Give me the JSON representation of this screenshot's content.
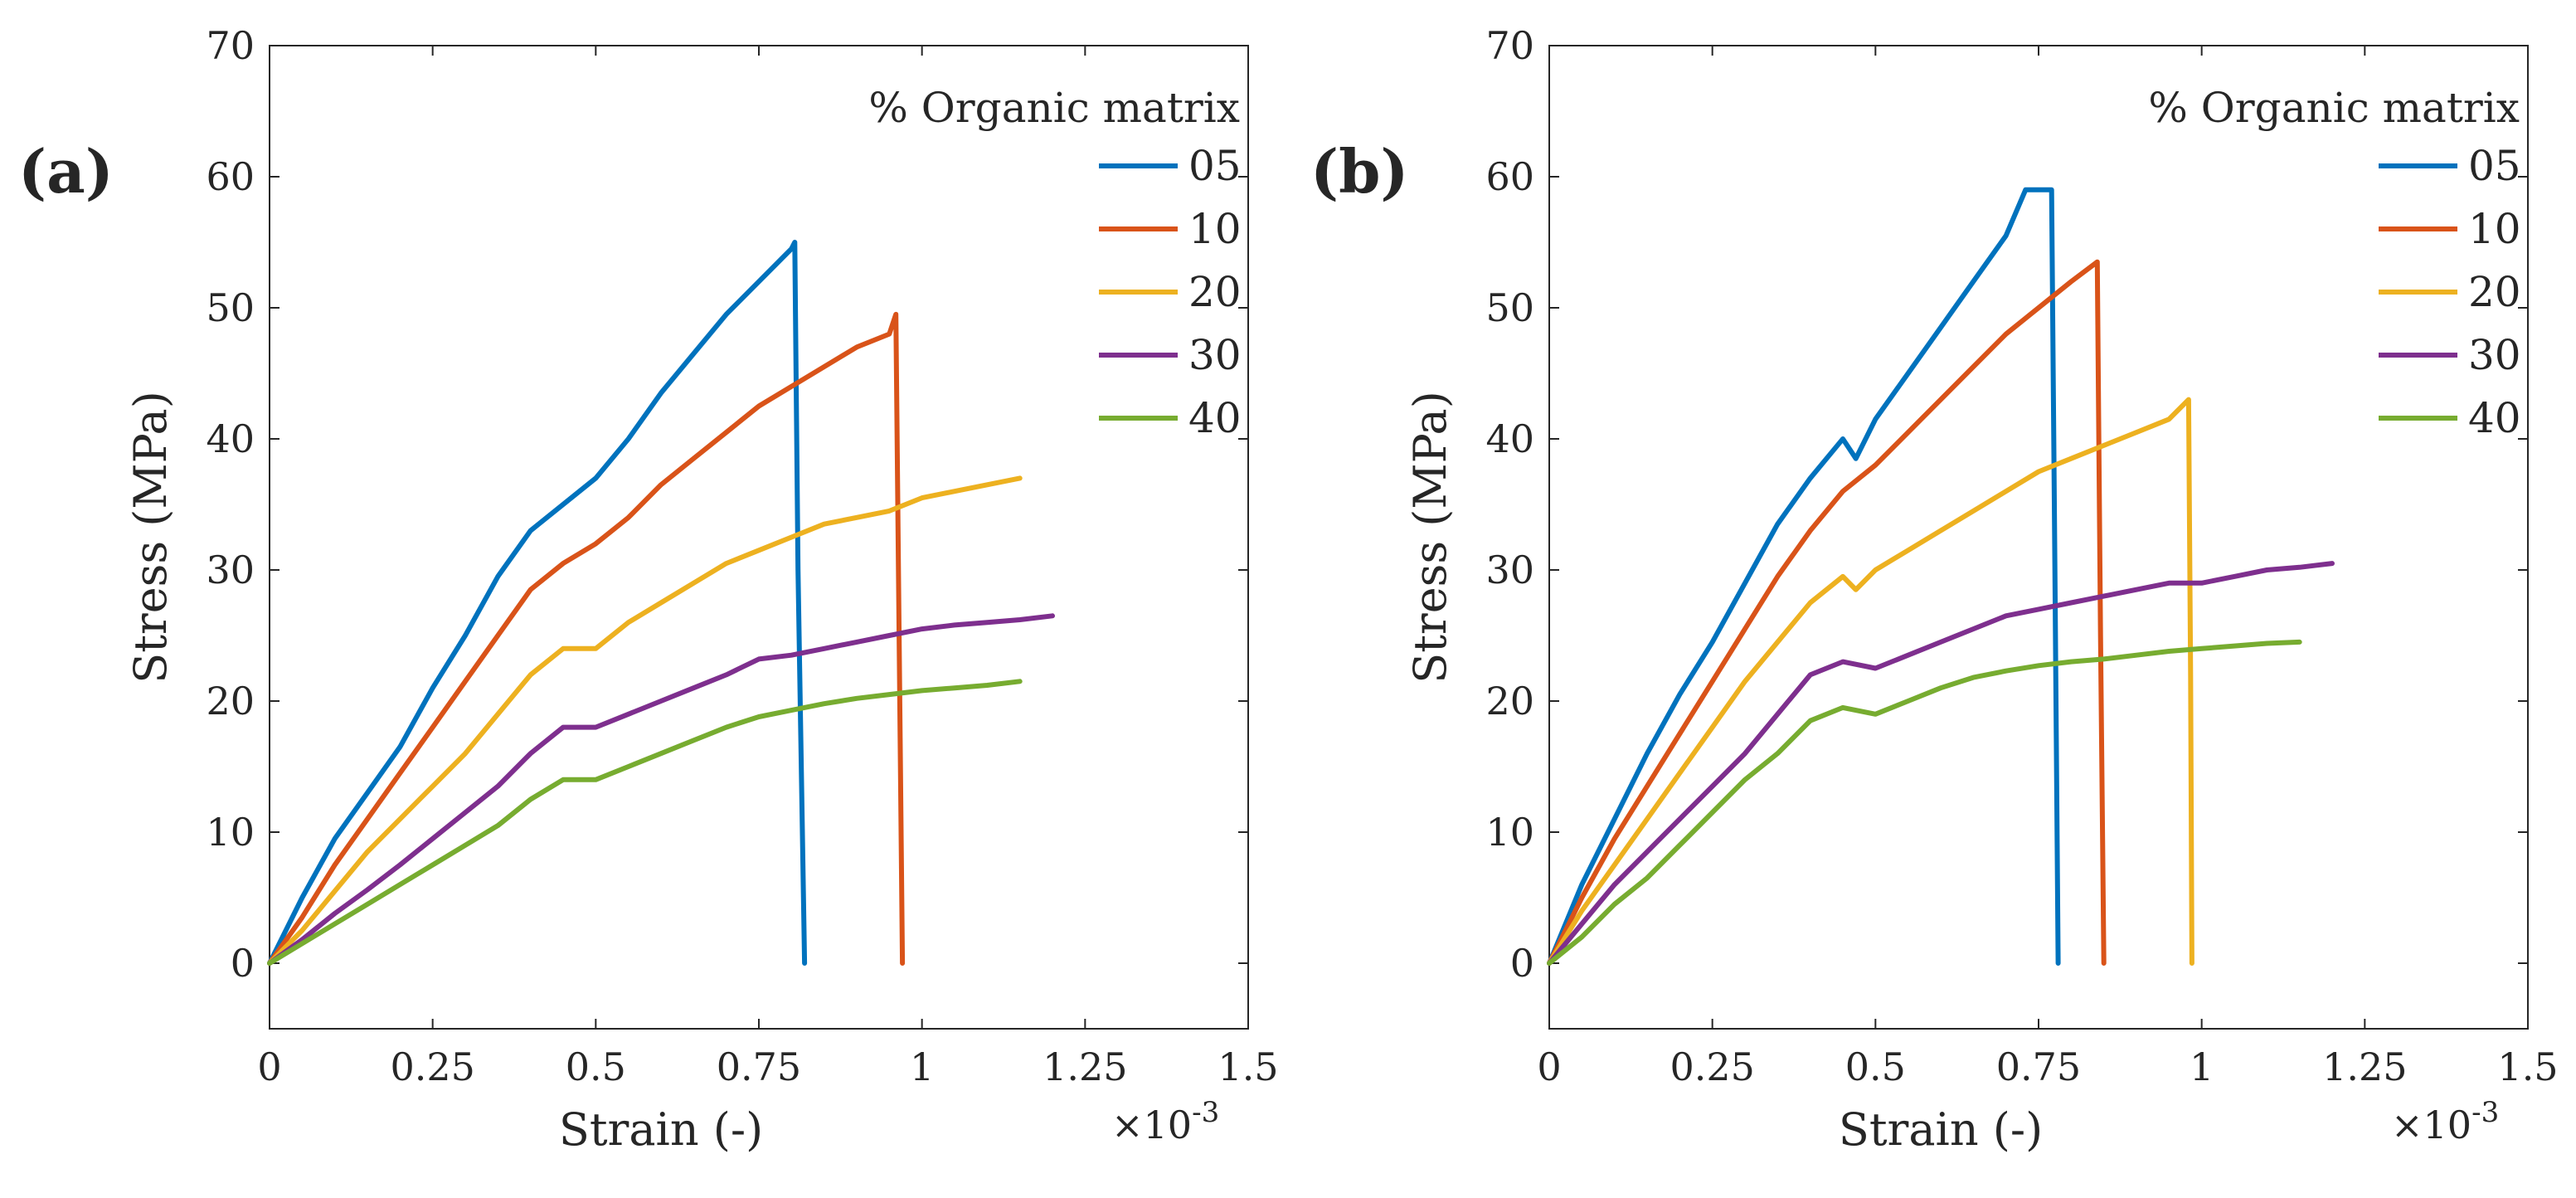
{
  "chart_data": [
    {
      "panel": "(a)",
      "type": "line",
      "xlabel": "Strain (-)",
      "ylabel": "Stress (MPa)",
      "x_multiplier": "×10",
      "x_exponent": "-3",
      "xlim": [
        0,
        1.5
      ],
      "ylim": [
        -5,
        70
      ],
      "xticks": [
        "0",
        "0.25",
        "0.5",
        "0.75",
        "1",
        "1.25",
        "1.5"
      ],
      "yticks": [
        "0",
        "10",
        "20",
        "30",
        "40",
        "50",
        "60",
        "70"
      ],
      "legend_title": "% Organic matrix",
      "legend_position": "top-right",
      "series": [
        {
          "name": "05",
          "color": "#0072BD",
          "x": [
            0,
            0.05,
            0.1,
            0.15,
            0.2,
            0.25,
            0.3,
            0.35,
            0.4,
            0.45,
            0.5,
            0.55,
            0.6,
            0.65,
            0.7,
            0.75,
            0.8,
            0.805,
            0.81,
            0.82
          ],
          "y": [
            0,
            5,
            9.5,
            13,
            16.5,
            21,
            25,
            29.5,
            33,
            35,
            37,
            40,
            43.5,
            46.5,
            49.5,
            52,
            54.5,
            55,
            30,
            0
          ]
        },
        {
          "name": "10",
          "color": "#D95319",
          "x": [
            0,
            0.05,
            0.1,
            0.15,
            0.2,
            0.25,
            0.3,
            0.35,
            0.4,
            0.45,
            0.5,
            0.55,
            0.6,
            0.65,
            0.7,
            0.75,
            0.8,
            0.85,
            0.9,
            0.95,
            0.96,
            0.965,
            0.97
          ],
          "y": [
            0,
            3.5,
            7.5,
            11,
            14.5,
            18,
            21.5,
            25,
            28.5,
            30.5,
            32,
            34,
            36.5,
            38.5,
            40.5,
            42.5,
            44,
            45.5,
            47,
            48,
            49.5,
            25,
            0
          ]
        },
        {
          "name": "20",
          "color": "#EDB120",
          "x": [
            0,
            0.05,
            0.1,
            0.15,
            0.2,
            0.25,
            0.3,
            0.35,
            0.4,
            0.45,
            0.5,
            0.55,
            0.6,
            0.65,
            0.7,
            0.75,
            0.8,
            0.85,
            0.9,
            0.95,
            1.0,
            1.05,
            1.1,
            1.15
          ],
          "y": [
            0,
            2.5,
            5.5,
            8.5,
            11,
            13.5,
            16,
            19,
            22,
            24,
            24,
            26,
            27.5,
            29,
            30.5,
            31.5,
            32.5,
            33.5,
            34,
            34.5,
            35.5,
            36,
            36.5,
            37
          ]
        },
        {
          "name": "30",
          "color": "#7E2F8E",
          "x": [
            0,
            0.05,
            0.1,
            0.15,
            0.2,
            0.25,
            0.3,
            0.35,
            0.4,
            0.45,
            0.5,
            0.55,
            0.6,
            0.65,
            0.7,
            0.75,
            0.8,
            0.85,
            0.9,
            0.95,
            1.0,
            1.05,
            1.1,
            1.15,
            1.2
          ],
          "y": [
            0,
            1.8,
            3.8,
            5.6,
            7.5,
            9.5,
            11.5,
            13.5,
            16,
            18,
            18,
            19,
            20,
            21,
            22,
            23.2,
            23.5,
            24,
            24.5,
            25,
            25.5,
            25.8,
            26,
            26.2,
            26.5
          ]
        },
        {
          "name": "40",
          "color": "#77AC30",
          "x": [
            0,
            0.05,
            0.1,
            0.15,
            0.2,
            0.25,
            0.3,
            0.35,
            0.4,
            0.45,
            0.5,
            0.55,
            0.6,
            0.65,
            0.7,
            0.75,
            0.8,
            0.85,
            0.9,
            0.95,
            1.0,
            1.05,
            1.1,
            1.15
          ],
          "y": [
            0,
            1.5,
            3,
            4.5,
            6,
            7.5,
            9,
            10.5,
            12.5,
            14,
            14,
            15,
            16,
            17,
            18,
            18.8,
            19.3,
            19.8,
            20.2,
            20.5,
            20.8,
            21,
            21.2,
            21.5
          ]
        }
      ]
    },
    {
      "panel": "(b)",
      "type": "line",
      "xlabel": "Strain (-)",
      "ylabel": "Stress (MPa)",
      "x_multiplier": "×10",
      "x_exponent": "-3",
      "xlim": [
        0,
        1.5
      ],
      "ylim": [
        -5,
        70
      ],
      "xticks": [
        "0",
        "0.25",
        "0.5",
        "0.75",
        "1",
        "1.25",
        "1.5"
      ],
      "yticks": [
        "0",
        "10",
        "20",
        "30",
        "40",
        "50",
        "60",
        "70"
      ],
      "legend_title": "% Organic matrix",
      "legend_position": "top-right",
      "series": [
        {
          "name": "05",
          "color": "#0072BD",
          "x": [
            0,
            0.05,
            0.1,
            0.15,
            0.2,
            0.25,
            0.3,
            0.35,
            0.4,
            0.45,
            0.47,
            0.5,
            0.55,
            0.6,
            0.65,
            0.7,
            0.73,
            0.77,
            0.775,
            0.78
          ],
          "y": [
            0,
            6,
            11,
            16,
            20.5,
            24.5,
            29,
            33.5,
            37,
            40,
            38.5,
            41.5,
            45,
            48.5,
            52,
            55.5,
            59,
            59,
            30,
            0
          ]
        },
        {
          "name": "10",
          "color": "#D95319",
          "x": [
            0,
            0.05,
            0.1,
            0.15,
            0.2,
            0.25,
            0.3,
            0.35,
            0.4,
            0.45,
            0.5,
            0.55,
            0.6,
            0.65,
            0.7,
            0.75,
            0.8,
            0.84,
            0.845,
            0.85
          ],
          "y": [
            0,
            5,
            9.5,
            13.5,
            17.5,
            21.5,
            25.5,
            29.5,
            33,
            36,
            38,
            40.5,
            43,
            45.5,
            48,
            50,
            52,
            53.5,
            25,
            0
          ]
        },
        {
          "name": "20",
          "color": "#EDB120",
          "x": [
            0,
            0.05,
            0.1,
            0.15,
            0.2,
            0.25,
            0.3,
            0.35,
            0.4,
            0.45,
            0.47,
            0.5,
            0.55,
            0.6,
            0.65,
            0.7,
            0.75,
            0.8,
            0.85,
            0.9,
            0.95,
            0.98,
            0.983,
            0.985
          ],
          "y": [
            0,
            4,
            7.5,
            11,
            14.5,
            18,
            21.5,
            24.5,
            27.5,
            29.5,
            28.5,
            30,
            31.5,
            33,
            34.5,
            36,
            37.5,
            38.5,
            39.5,
            40.5,
            41.5,
            43,
            22,
            0
          ]
        },
        {
          "name": "30",
          "color": "#7E2F8E",
          "x": [
            0,
            0.05,
            0.1,
            0.15,
            0.2,
            0.25,
            0.3,
            0.35,
            0.4,
            0.45,
            0.5,
            0.55,
            0.6,
            0.65,
            0.7,
            0.75,
            0.8,
            0.85,
            0.9,
            0.95,
            1.0,
            1.05,
            1.1,
            1.15,
            1.2
          ],
          "y": [
            0,
            3,
            6,
            8.5,
            11,
            13.5,
            16,
            19,
            22,
            23,
            22.5,
            23.5,
            24.5,
            25.5,
            26.5,
            27,
            27.5,
            28,
            28.5,
            29,
            29,
            29.5,
            30,
            30.2,
            30.5
          ]
        },
        {
          "name": "40",
          "color": "#77AC30",
          "x": [
            0,
            0.05,
            0.1,
            0.15,
            0.2,
            0.25,
            0.3,
            0.35,
            0.4,
            0.45,
            0.5,
            0.55,
            0.6,
            0.65,
            0.7,
            0.75,
            0.8,
            0.85,
            0.9,
            0.95,
            1.0,
            1.05,
            1.1,
            1.15
          ],
          "y": [
            0,
            2,
            4.5,
            6.5,
            9,
            11.5,
            14,
            16,
            18.5,
            19.5,
            19,
            20,
            21,
            21.8,
            22.3,
            22.7,
            23,
            23.2,
            23.5,
            23.8,
            24,
            24.2,
            24.4,
            24.5
          ]
        }
      ]
    }
  ]
}
